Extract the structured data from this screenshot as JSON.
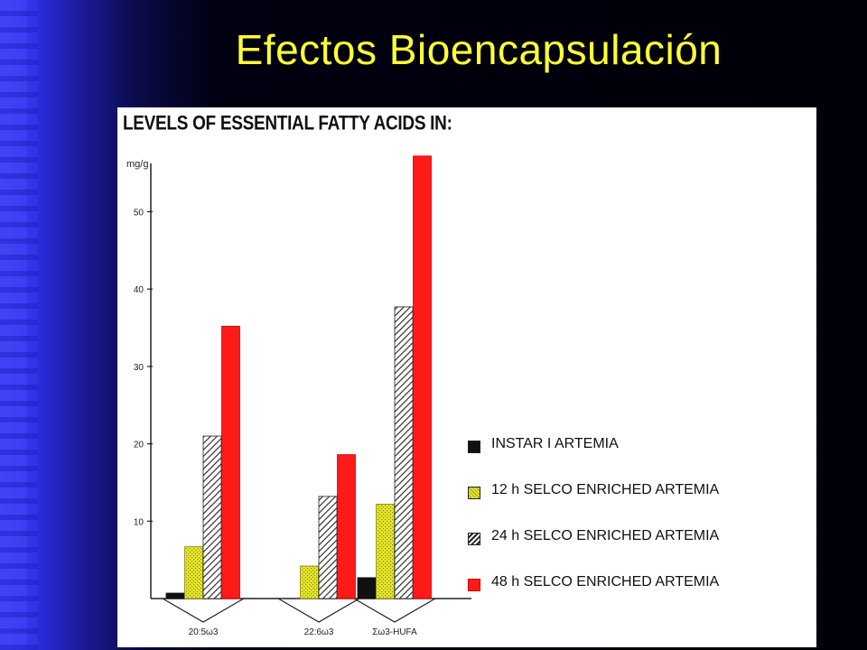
{
  "slide": {
    "title": "Efectos Bioencapsulación"
  },
  "colors": {
    "title": "#ffff33",
    "instar": "#111111",
    "h12": "#e6e62e",
    "h24": "#ffffff",
    "h48": "#ff1a1a"
  },
  "chart_data": {
    "type": "bar",
    "title": "LEVELS OF ESSENTIAL FATTY ACIDS IN:",
    "ylabel": "mg/g",
    "xlabel": "",
    "ylim": [
      0,
      58
    ],
    "yticks": [
      10,
      20,
      30,
      40,
      50
    ],
    "grid": false,
    "legend_position": "bottom-right",
    "categories": [
      "20:5ω3",
      "22:6ω3",
      "Σω3-HUFA"
    ],
    "series": [
      {
        "name": "INSTAR I ARTEMIA",
        "values": [
          0.7,
          0,
          2.7
        ],
        "color": "#111111",
        "pattern": "solid"
      },
      {
        "name": "12 h SELCO ENRICHED ARTEMIA",
        "values": [
          6.7,
          4.2,
          12.2
        ],
        "color": "#e6e62e",
        "pattern": "dotted"
      },
      {
        "name": "24 h SELCO ENRICHED ARTEMIA",
        "values": [
          21,
          13.2,
          37.7
        ],
        "color": "#ffffff",
        "pattern": "hatch"
      },
      {
        "name": "48 h SELCO ENRICHED ARTEMIA",
        "values": [
          35.2,
          18.6,
          57.2
        ],
        "color": "#ff1a1a",
        "pattern": "solid"
      }
    ]
  }
}
